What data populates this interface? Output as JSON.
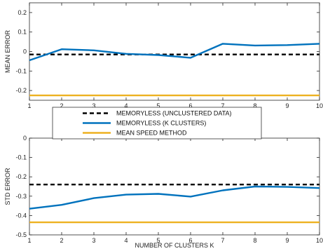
{
  "chart_data": [
    {
      "type": "line",
      "title": "",
      "xlabel": "",
      "ylabel": "MEAN ERROR",
      "xlim": [
        1,
        10
      ],
      "ylim": [
        -0.25,
        0.25
      ],
      "x": [
        1,
        2,
        3,
        4,
        5,
        6,
        7,
        8,
        9,
        10
      ],
      "xticks": [
        "1",
        "2",
        "3",
        "4",
        "5",
        "6",
        "7",
        "8",
        "9",
        "10"
      ],
      "yticks": [
        "-0.2",
        "-0.1",
        "0",
        "0.1",
        "0.2"
      ],
      "ytick_values": [
        -0.2,
        -0.1,
        0,
        0.1,
        0.2
      ],
      "grid": false,
      "series": [
        {
          "name": "MEMORYLESS (UNCLUSTERED DATA)",
          "style": "dashed",
          "color": "#000000",
          "values": [
            -0.015,
            -0.015,
            -0.015,
            -0.015,
            -0.015,
            -0.015,
            -0.015,
            -0.015,
            -0.015,
            -0.015
          ]
        },
        {
          "name": "MEMORYLESS (K CLUSTERS)",
          "style": "solid",
          "color": "#0072bd",
          "values": [
            -0.045,
            0.012,
            0.006,
            -0.012,
            -0.018,
            -0.032,
            0.04,
            0.031,
            0.033,
            0.04
          ]
        },
        {
          "name": "MEAN SPEED METHOD",
          "style": "solid",
          "color": "#edb120",
          "values": [
            -0.225,
            -0.225,
            -0.225,
            -0.225,
            -0.225,
            -0.225,
            -0.225,
            -0.225,
            -0.225,
            -0.225
          ]
        }
      ]
    },
    {
      "type": "line",
      "title": "",
      "xlabel": "NUMBER OF CLUSTERS K",
      "ylabel": "STD ERROR",
      "xlim": [
        1,
        10
      ],
      "ylim": [
        -0.5,
        0
      ],
      "x": [
        1,
        2,
        3,
        4,
        5,
        6,
        7,
        8,
        9,
        10
      ],
      "xticks": [
        "1",
        "2",
        "3",
        "4",
        "5",
        "6",
        "7",
        "8",
        "9",
        "10"
      ],
      "yticks": [
        "-0.5",
        "-0.4",
        "-0.3",
        "-0.2",
        "-0.1",
        "0"
      ],
      "ytick_values": [
        -0.5,
        -0.4,
        -0.3,
        -0.2,
        -0.1,
        0
      ],
      "grid": false,
      "series": [
        {
          "name": "MEMORYLESS (UNCLUSTERED DATA)",
          "style": "dashed",
          "color": "#000000",
          "values": [
            -0.24,
            -0.24,
            -0.24,
            -0.24,
            -0.24,
            -0.24,
            -0.24,
            -0.24,
            -0.24,
            -0.24
          ]
        },
        {
          "name": "MEMORYLESS (K CLUSTERS)",
          "style": "solid",
          "color": "#0072bd",
          "values": [
            -0.365,
            -0.345,
            -0.31,
            -0.292,
            -0.288,
            -0.302,
            -0.27,
            -0.25,
            -0.252,
            -0.258
          ]
        },
        {
          "name": "MEAN SPEED METHOD",
          "style": "solid",
          "color": "#edb120",
          "values": [
            -0.435,
            -0.435,
            -0.435,
            -0.435,
            -0.435,
            -0.435,
            -0.435,
            -0.435,
            -0.435,
            -0.435
          ]
        }
      ]
    }
  ],
  "legend": {
    "placement": "center",
    "items": [
      {
        "label": "MEMORYLESS (UNCLUSTERED DATA)",
        "style": "dashed",
        "color": "#000000"
      },
      {
        "label": "MEMORYLESS (K CLUSTERS)",
        "style": "solid",
        "color": "#0072bd"
      },
      {
        "label": "MEAN SPEED METHOD",
        "style": "solid",
        "color": "#edb120"
      }
    ]
  }
}
